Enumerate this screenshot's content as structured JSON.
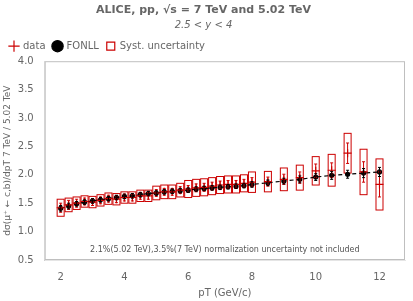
{
  "chart_data": {
    "type": "scatter",
    "title": "ALICE, pp, √s = 7 TeV and 5.02 TeV",
    "subtitle": "2.5 < y < 4",
    "xlabel": "pT (GeV/c)",
    "ylabel": "dσ(μ⁺ ← c,b)/dpT 7 TeV / 5.02 TeV",
    "annotations": [
      "2.1%(5.02 TeV),3.5%(7 TeV) normalization uncertainty not included"
    ],
    "x": [
      2.0,
      2.25,
      2.5,
      2.75,
      3.0,
      3.25,
      3.5,
      3.75,
      4.0,
      4.25,
      4.5,
      4.75,
      5.0,
      5.25,
      5.5,
      5.75,
      6.0,
      6.25,
      6.5,
      6.75,
      7.0,
      7.25,
      7.5,
      7.75,
      8.0,
      8.5,
      9.0,
      9.5,
      10.0,
      10.5,
      11.0,
      11.5,
      12.0
    ],
    "series": [
      {
        "name": "data",
        "type": "scatter",
        "marker": "plus",
        "color": "#cc0000",
        "values": [
          1.42,
          1.47,
          1.5,
          1.53,
          1.52,
          1.55,
          1.58,
          1.57,
          1.6,
          1.6,
          1.63,
          1.63,
          1.68,
          1.7,
          1.7,
          1.73,
          1.75,
          1.77,
          1.78,
          1.8,
          1.82,
          1.83,
          1.83,
          1.85,
          1.87,
          1.88,
          1.92,
          1.95,
          2.07,
          2.08,
          2.38,
          2.05,
          1.83
        ],
        "errors": [
          0.08,
          0.08,
          0.07,
          0.06,
          0.06,
          0.06,
          0.06,
          0.06,
          0.06,
          0.06,
          0.06,
          0.06,
          0.06,
          0.06,
          0.06,
          0.06,
          0.06,
          0.07,
          0.07,
          0.07,
          0.07,
          0.07,
          0.07,
          0.07,
          0.08,
          0.08,
          0.09,
          0.1,
          0.12,
          0.13,
          0.18,
          0.18,
          0.22
        ]
      },
      {
        "name": "FONLL",
        "type": "line",
        "marker": "circle",
        "line_style": "dashed",
        "color": "#000000",
        "values": [
          1.41,
          1.45,
          1.49,
          1.52,
          1.54,
          1.56,
          1.58,
          1.6,
          1.62,
          1.63,
          1.65,
          1.67,
          1.68,
          1.7,
          1.71,
          1.72,
          1.73,
          1.75,
          1.76,
          1.77,
          1.78,
          1.79,
          1.8,
          1.81,
          1.83,
          1.86,
          1.89,
          1.92,
          1.96,
          1.99,
          2.01,
          2.03,
          2.05
        ],
        "errors": [
          0.05,
          0.05,
          0.04,
          0.04,
          0.04,
          0.04,
          0.04,
          0.04,
          0.04,
          0.04,
          0.04,
          0.04,
          0.04,
          0.04,
          0.04,
          0.04,
          0.04,
          0.04,
          0.04,
          0.04,
          0.04,
          0.04,
          0.04,
          0.04,
          0.05,
          0.05,
          0.05,
          0.06,
          0.06,
          0.07,
          0.07,
          0.08,
          0.08
        ]
      },
      {
        "name": "Syst. uncertainty",
        "type": "box",
        "marker": "box",
        "color": "#cc0000",
        "values": [
          1.42,
          1.47,
          1.5,
          1.53,
          1.52,
          1.55,
          1.58,
          1.57,
          1.6,
          1.6,
          1.63,
          1.63,
          1.68,
          1.7,
          1.7,
          1.73,
          1.75,
          1.77,
          1.78,
          1.8,
          1.82,
          1.83,
          1.83,
          1.85,
          1.87,
          1.88,
          1.92,
          1.95,
          2.07,
          2.08,
          2.38,
          2.05,
          1.83
        ],
        "errors": [
          0.15,
          0.12,
          0.11,
          0.1,
          0.1,
          0.1,
          0.1,
          0.1,
          0.1,
          0.1,
          0.1,
          0.1,
          0.12,
          0.12,
          0.12,
          0.12,
          0.15,
          0.15,
          0.15,
          0.15,
          0.15,
          0.15,
          0.15,
          0.15,
          0.18,
          0.18,
          0.2,
          0.22,
          0.25,
          0.28,
          0.35,
          0.4,
          0.45
        ]
      }
    ],
    "xlim": [
      1.5,
      12.8
    ],
    "ylim": [
      0.5,
      4.0
    ],
    "xticks": [
      2,
      4,
      6,
      8,
      10,
      12
    ],
    "yticks": [
      0.5,
      {
        "value": 1,
        "label": "1.0"
      },
      1.5,
      {
        "value": 2,
        "label": "2.0"
      },
      2.5,
      {
        "value": 3,
        "label": "3.0"
      },
      3.5,
      {
        "value": 4,
        "label": "4.0"
      }
    ],
    "grid": false,
    "legend": "upper left"
  }
}
